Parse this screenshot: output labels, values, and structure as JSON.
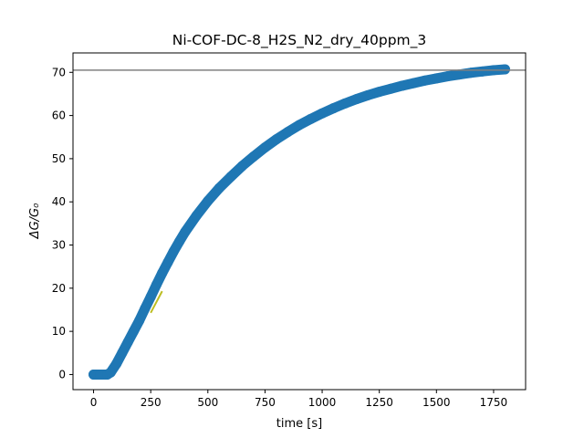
{
  "chart_data": {
    "type": "scatter",
    "title": "Ni-COF-DC-8_H2S_N2_dry_40ppm_3",
    "xlabel": "time [s]",
    "ylabel": "ΔG/G₀",
    "xlim": [
      -90,
      1890
    ],
    "ylim": [
      -3.5,
      74.5
    ],
    "x_ticks": [
      0,
      250,
      500,
      750,
      1000,
      1250,
      1500,
      1750
    ],
    "y_ticks": [
      0,
      10,
      20,
      30,
      40,
      50,
      60,
      70
    ],
    "grid": false,
    "legend": "none",
    "series": [
      {
        "kind": "scatter",
        "color": "#1f77b4",
        "x": [
          0,
          30,
          60,
          75,
          100,
          125,
          150,
          175,
          200,
          225,
          250,
          275,
          300,
          325,
          350,
          375,
          400,
          450,
          500,
          550,
          600,
          650,
          700,
          750,
          800,
          850,
          900,
          950,
          1000,
          1050,
          1100,
          1150,
          1200,
          1250,
          1300,
          1350,
          1400,
          1450,
          1500,
          1550,
          1600,
          1650,
          1700,
          1750,
          1800
        ],
        "y": [
          0,
          0,
          0,
          0.5,
          2.5,
          5,
          7.5,
          10,
          12.5,
          15.3,
          18,
          20.8,
          23.5,
          26,
          28.5,
          30.8,
          33,
          36.8,
          40.2,
          43.2,
          45.8,
          48.3,
          50.5,
          52.6,
          54.5,
          56.2,
          57.8,
          59.2,
          60.5,
          61.7,
          62.8,
          63.8,
          64.7,
          65.5,
          66.2,
          66.9,
          67.5,
          68.1,
          68.6,
          69.1,
          69.5,
          69.9,
          70.2,
          70.5,
          70.7
        ]
      },
      {
        "kind": "line",
        "color": "#bcbd22",
        "x": [
          250,
          300
        ],
        "y": [
          14.3,
          19.3
        ]
      },
      {
        "kind": "hline",
        "color": "#808080",
        "y": 70.5
      }
    ]
  }
}
